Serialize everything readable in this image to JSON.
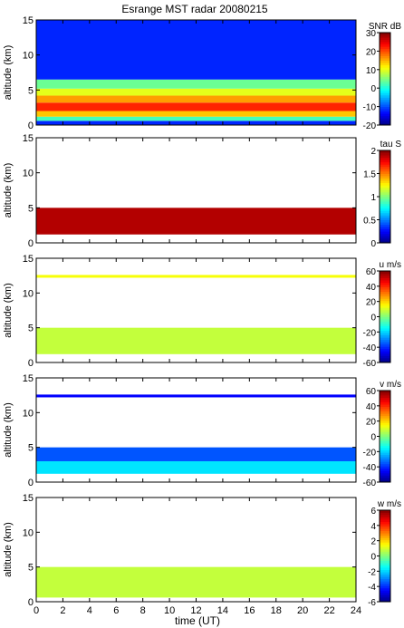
{
  "figure": {
    "title": "Esrange MST radar 20080215",
    "xlabel": "time (UT)",
    "ylabel": "altitude (km)"
  },
  "chart_data": [
    {
      "type": "heatmap",
      "id": "snr",
      "xlim": [
        0,
        24
      ],
      "ylim": [
        0,
        15
      ],
      "x_ticks": [
        0,
        2,
        4,
        6,
        8,
        10,
        12,
        14,
        16,
        18,
        20,
        22,
        24
      ],
      "y_ticks": [
        0,
        5,
        10,
        15
      ],
      "colorbar": {
        "label": "SNR dB",
        "range": [
          -20,
          30
        ],
        "ticks": [
          -20,
          -10,
          0,
          10,
          20,
          30
        ]
      },
      "layers": [
        {
          "z0": 0.0,
          "z1": 0.6,
          "value": -12
        },
        {
          "z0": 0.6,
          "z1": 1.2,
          "value": 2
        },
        {
          "z0": 1.2,
          "z1": 2.0,
          "value": 14
        },
        {
          "z0": 2.0,
          "z1": 3.2,
          "value": 22
        },
        {
          "z0": 3.2,
          "z1": 4.2,
          "value": 16
        },
        {
          "z0": 4.2,
          "z1": 5.2,
          "value": 10
        },
        {
          "z0": 5.2,
          "z1": 6.5,
          "value": 4
        },
        {
          "z0": 6.5,
          "z1": 15.0,
          "value": -12
        }
      ]
    },
    {
      "type": "heatmap",
      "id": "tau",
      "xlim": [
        0,
        24
      ],
      "ylim": [
        0,
        15
      ],
      "x_ticks": [
        0,
        2,
        4,
        6,
        8,
        10,
        12,
        14,
        16,
        18,
        20,
        22,
        24
      ],
      "y_ticks": [
        0,
        5,
        10,
        15
      ],
      "colorbar": {
        "label": "tau S",
        "range": [
          0,
          2
        ],
        "ticks": [
          0,
          0.5,
          1,
          1.5,
          2
        ]
      },
      "layers": [
        {
          "z0": 1.2,
          "z1": 5.0,
          "value": 1.9
        }
      ]
    },
    {
      "type": "heatmap",
      "id": "u",
      "xlim": [
        0,
        24
      ],
      "ylim": [
        0,
        15
      ],
      "x_ticks": [
        0,
        2,
        4,
        6,
        8,
        10,
        12,
        14,
        16,
        18,
        20,
        22,
        24
      ],
      "y_ticks": [
        0,
        5,
        10,
        15
      ],
      "colorbar": {
        "label": "u m/s",
        "range": [
          -60,
          60
        ],
        "ticks": [
          -60,
          -40,
          -20,
          0,
          20,
          40,
          60
        ]
      },
      "layers": [
        {
          "z0": 1.2,
          "z1": 5.0,
          "value": 8
        },
        {
          "z0": 12.2,
          "z1": 12.6,
          "value": 14
        }
      ]
    },
    {
      "type": "heatmap",
      "id": "v",
      "xlim": [
        0,
        24
      ],
      "ylim": [
        0,
        15
      ],
      "x_ticks": [
        0,
        2,
        4,
        6,
        8,
        10,
        12,
        14,
        16,
        18,
        20,
        22,
        24
      ],
      "y_ticks": [
        0,
        5,
        10,
        15
      ],
      "colorbar": {
        "label": "v m/s",
        "range": [
          -60,
          60
        ],
        "ticks": [
          -60,
          -40,
          -20,
          0,
          20,
          40,
          60
        ]
      },
      "layers": [
        {
          "z0": 1.2,
          "z1": 3.0,
          "value": -18
        },
        {
          "z0": 3.0,
          "z1": 5.0,
          "value": -35
        },
        {
          "z0": 12.2,
          "z1": 12.6,
          "value": -45
        }
      ]
    },
    {
      "type": "heatmap",
      "id": "w",
      "xlim": [
        0,
        24
      ],
      "ylim": [
        0,
        15
      ],
      "x_ticks": [
        0,
        2,
        4,
        6,
        8,
        10,
        12,
        14,
        16,
        18,
        20,
        22,
        24
      ],
      "y_ticks": [
        0,
        5,
        10,
        15
      ],
      "colorbar": {
        "label": "w m/s",
        "range": [
          -6,
          6
        ],
        "ticks": [
          -6,
          -4,
          -2,
          0,
          2,
          4,
          6
        ]
      },
      "layers": [
        {
          "z0": 0.6,
          "z1": 5.0,
          "value": 0.8
        }
      ]
    }
  ]
}
